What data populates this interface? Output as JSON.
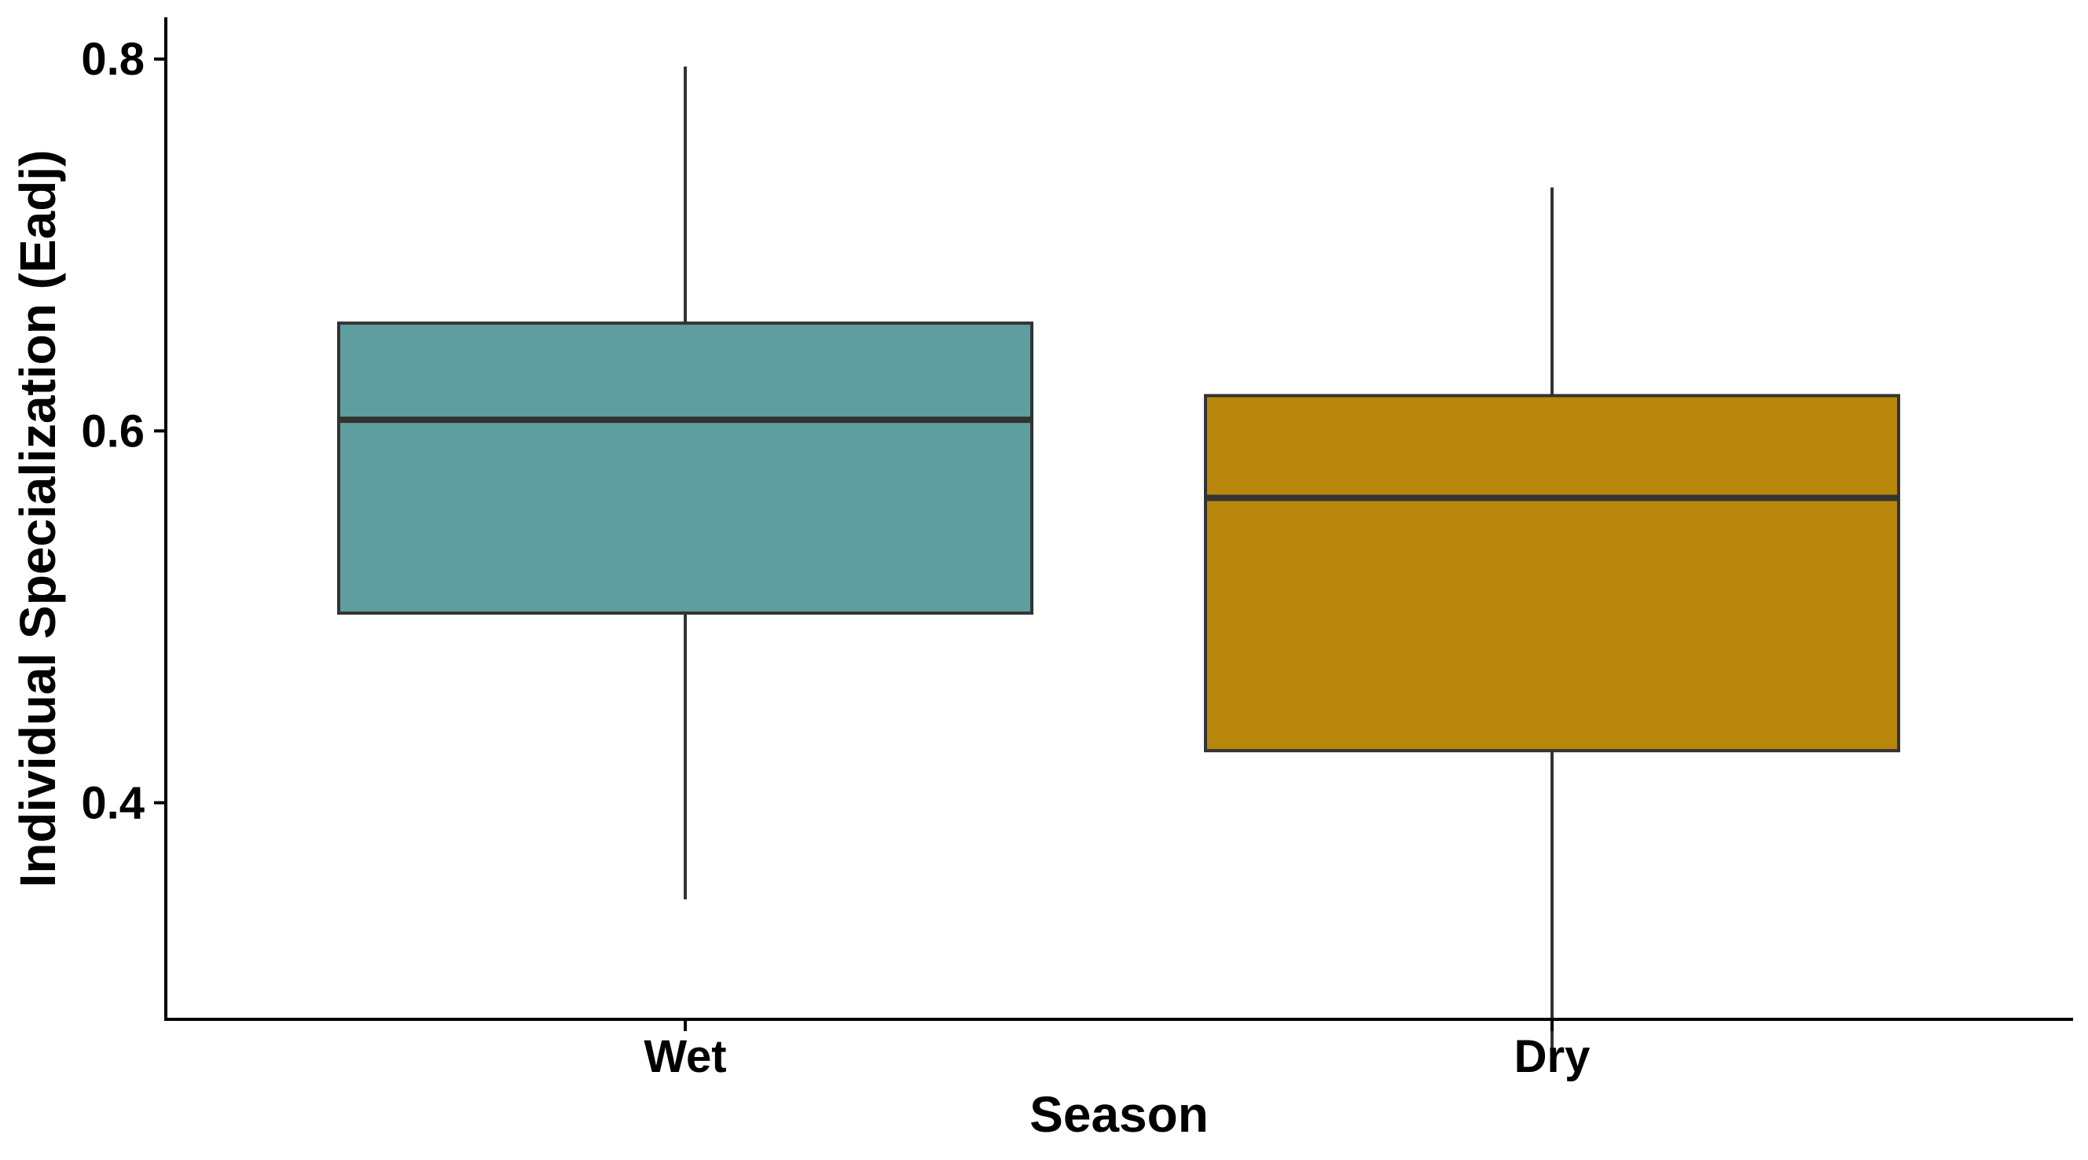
{
  "chart_data": {
    "type": "boxplot",
    "title": "",
    "xlabel": "Season",
    "ylabel": "Individual Specialization (Eadj)",
    "ylim": [
      0.2835,
      0.8225
    ],
    "yticks": [
      0.4,
      0.6,
      0.8
    ],
    "ytick_labels": [
      "0.4",
      "0.6",
      "0.8"
    ],
    "grid": false,
    "legend": "none",
    "categories": [
      "Wet",
      "Dry"
    ],
    "boxes": [
      {
        "category": "Wet",
        "whisker_low": 0.348,
        "q1": 0.502,
        "median": 0.606,
        "q3": 0.658,
        "whisker_high": 0.796,
        "color": "#5f9e9f"
      },
      {
        "category": "Dry",
        "whisker_low": 0.265,
        "q1": 0.428,
        "median": 0.564,
        "q3": 0.619,
        "whisker_high": 0.731,
        "color": "#b8860b"
      }
    ]
  }
}
